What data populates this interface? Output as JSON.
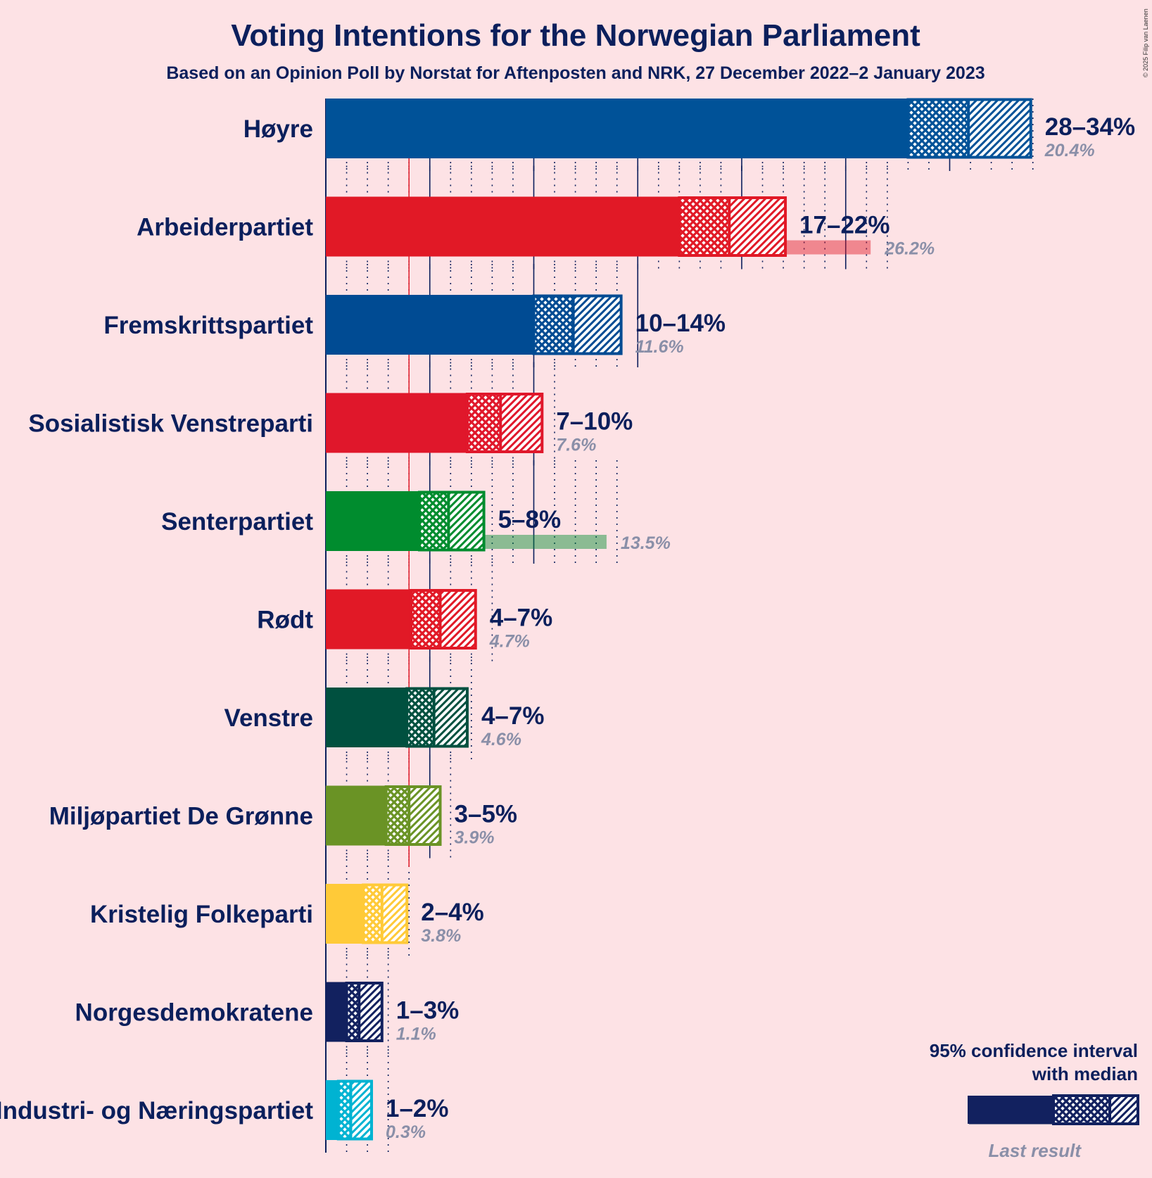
{
  "title": "Voting Intentions for the Norwegian Parliament",
  "subtitle": "Based on an Opinion Poll by Norstat for Aftenposten and NRK, 27 December 2022–2 January 2023",
  "copyright": "© 2025 Filip van Laenen",
  "legend": {
    "line1": "95% confidence interval",
    "line2": "with median",
    "last_result": "Last result",
    "color": "#12215F"
  },
  "chart_data": {
    "type": "bar",
    "orientation": "horizontal",
    "unit": "%",
    "threshold": 4,
    "xlim": [
      0,
      35
    ],
    "grid": "dotted every 1%, solid every 5%",
    "series": [
      {
        "party": "Høyre",
        "color": "#005298",
        "ci_low": 28.0,
        "median": 30.9,
        "ci_high": 33.9,
        "range_label": "28–34%",
        "last_result": 20.4,
        "last_label": "20.4%"
      },
      {
        "party": "Arbeiderpartiet",
        "color": "#E11926",
        "ci_low": 17.0,
        "median": 19.4,
        "ci_high": 22.1,
        "range_label": "17–22%",
        "last_result": 26.2,
        "last_label": "26.2%"
      },
      {
        "party": "Fremskrittspartiet",
        "color": "#004B93",
        "ci_low": 10.0,
        "median": 11.9,
        "ci_high": 14.2,
        "range_label": "10–14%",
        "last_result": 11.6,
        "last_label": "11.6%"
      },
      {
        "party": "Sosialistisk Venstreparti",
        "color": "#E0172B",
        "ci_low": 6.8,
        "median": 8.4,
        "ci_high": 10.4,
        "range_label": "7–10%",
        "last_result": 7.6,
        "last_label": "7.6%"
      },
      {
        "party": "Senterpartiet",
        "color": "#008C2E",
        "ci_low": 4.5,
        "median": 5.9,
        "ci_high": 7.6,
        "range_label": "5–8%",
        "last_result": 13.5,
        "last_label": "13.5%"
      },
      {
        "party": "Rødt",
        "color": "#E11926",
        "ci_low": 4.1,
        "median": 5.5,
        "ci_high": 7.2,
        "range_label": "4–7%",
        "last_result": 4.7,
        "last_label": "4.7%"
      },
      {
        "party": "Venstre",
        "color": "#00503F",
        "ci_low": 3.9,
        "median": 5.2,
        "ci_high": 6.8,
        "range_label": "4–7%",
        "last_result": 4.6,
        "last_label": "4.6%"
      },
      {
        "party": "Miljøpartiet De Grønne",
        "color": "#6A9325",
        "ci_low": 2.9,
        "median": 4.0,
        "ci_high": 5.5,
        "range_label": "3–5%",
        "last_result": 3.9,
        "last_label": "3.9%"
      },
      {
        "party": "Kristelig Folkeparti",
        "color": "#FFCA38",
        "ci_low": 1.8,
        "median": 2.7,
        "ci_high": 3.9,
        "range_label": "2–4%",
        "last_result": 3.8,
        "last_label": "3.8%"
      },
      {
        "party": "Norgesdemokratene",
        "color": "#12215F",
        "ci_low": 1.0,
        "median": 1.6,
        "ci_high": 2.7,
        "range_label": "1–3%",
        "last_result": 1.1,
        "last_label": "1.1%"
      },
      {
        "party": "Industri- og Næringspartiet",
        "color": "#00B3D2",
        "ci_low": 0.6,
        "median": 1.2,
        "ci_high": 2.2,
        "range_label": "1–2%",
        "last_result": 0.3,
        "last_label": "0.3%"
      }
    ]
  }
}
